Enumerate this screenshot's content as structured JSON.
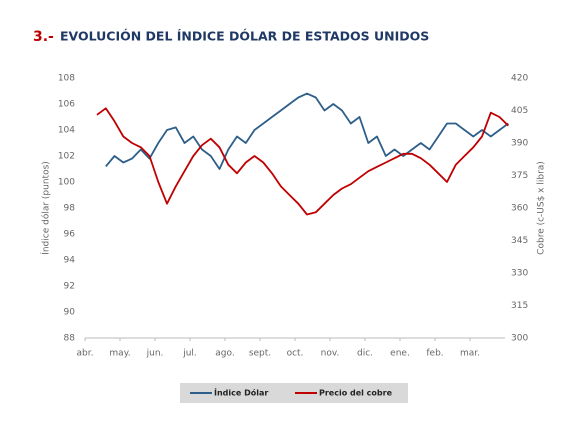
{
  "chart_data": {
    "type": "line",
    "title_number": "3.-",
    "title": "EVOLUCIÓN DEL ÍNDICE DÓLAR DE ESTADOS UNIDOS",
    "y_label": "Índice dólar (puntos)",
    "y2_label": "Cobre (c-US$ x libra)",
    "x": [
      "abr.",
      null,
      null,
      null,
      "may.",
      null,
      null,
      null,
      "jun.",
      null,
      null,
      null,
      "jul.",
      null,
      null,
      null,
      "ago.",
      null,
      null,
      null,
      "sept.",
      null,
      null,
      null,
      "oct.",
      null,
      null,
      null,
      "nov.",
      null,
      null,
      null,
      "dic.",
      null,
      null,
      null,
      "ene.",
      null,
      null,
      null,
      "feb.",
      null,
      null,
      null,
      "mar.",
      null,
      null,
      null
    ],
    "ylim": [
      88,
      108
    ],
    "yticks": [
      88,
      90,
      92,
      94,
      96,
      98,
      100,
      102,
      104,
      106,
      108
    ],
    "y2lim": [
      300,
      420
    ],
    "y2ticks": [
      300,
      315,
      330,
      345,
      360,
      375,
      390,
      405,
      420
    ],
    "series": [
      {
        "name": "Índice Dólar",
        "color": "#2e5f8a",
        "values": [
          null,
          101.2,
          102,
          101.5,
          101.8,
          102.5,
          101.8,
          103,
          104,
          104.2,
          103,
          103.5,
          102.5,
          102,
          101,
          102.5,
          103.5,
          103,
          104,
          104.5,
          105,
          105.5,
          106,
          106.5,
          106.8,
          106.5,
          105.5,
          106,
          105.5,
          104.5,
          105,
          103,
          103.5,
          102,
          102.5,
          102,
          102.5,
          103,
          102.5,
          103.5,
          104.5,
          104.5,
          104,
          103.5,
          104,
          103.5,
          104,
          104.5
        ]
      },
      {
        "name": "Precio del cobre",
        "color": "#c00000",
        "axis": "y2",
        "values": [
          403,
          406,
          400,
          393,
          390,
          388,
          384,
          372,
          362,
          370,
          377,
          384,
          389,
          392,
          388,
          380,
          376,
          381,
          384,
          381,
          376,
          370,
          366,
          362,
          357,
          358,
          362,
          366,
          369,
          371,
          374,
          377,
          379,
          381,
          383,
          385,
          385,
          383,
          380,
          376,
          372,
          380,
          384,
          388,
          393,
          404,
          402,
          398
        ]
      }
    ]
  }
}
